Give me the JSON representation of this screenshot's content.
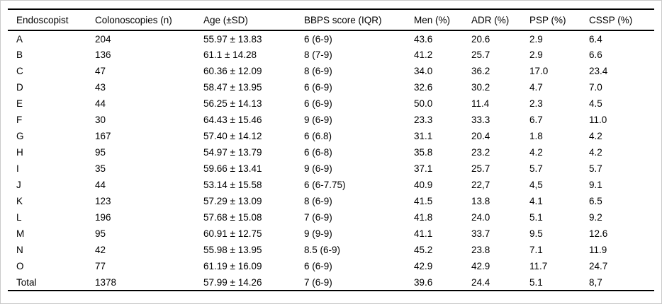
{
  "chart_data": {
    "type": "table",
    "columns": [
      "Endoscopist",
      "Colonoscopies (n)",
      "Age (±SD)",
      "BBPS score (IQR)",
      "Men (%)",
      "ADR (%)",
      "PSP (%)",
      "CSSP (%)"
    ],
    "rows": [
      [
        "A",
        "204",
        "55.97 ± 13.83",
        "6 (6-9)",
        "43.6",
        "20.6",
        "2.9",
        "6.4"
      ],
      [
        "B",
        "136",
        "61.1 ± 14.28",
        "8 (7-9)",
        "41.2",
        "25.7",
        "2.9",
        "6.6"
      ],
      [
        "C",
        "47",
        "60.36 ± 12.09",
        "8 (6-9)",
        "34.0",
        "36.2",
        "17.0",
        "23.4"
      ],
      [
        "D",
        "43",
        "58.47 ± 13.95",
        "6 (6-9)",
        "32.6",
        "30.2",
        "4.7",
        "7.0"
      ],
      [
        "E",
        "44",
        "56.25 ± 14.13",
        "6 (6-9)",
        "50.0",
        "11.4",
        "2.3",
        "4.5"
      ],
      [
        "F",
        "30",
        "64.43 ± 15.46",
        "9 (6-9)",
        "23.3",
        "33.3",
        "6.7",
        "11.0"
      ],
      [
        "G",
        "167",
        "57.40 ± 14.12",
        "6 (6.8)",
        "31.1",
        "20.4",
        "1.8",
        "4.2"
      ],
      [
        "H",
        "95",
        "54.97 ± 13.79",
        "6 (6-8)",
        "35.8",
        "23.2",
        "4.2",
        "4.2"
      ],
      [
        "I",
        "35",
        "59.66 ± 13.41",
        "9 (6-9)",
        "37.1",
        "25.7",
        "5.7",
        "5.7"
      ],
      [
        "J",
        "44",
        "53.14 ± 15.58",
        "6 (6-7.75)",
        "40.9",
        "22,7",
        "4,5",
        "9.1"
      ],
      [
        "K",
        "123",
        "57.29 ± 13.09",
        "8 (6-9)",
        "41.5",
        "13.8",
        "4.1",
        "6.5"
      ],
      [
        "L",
        "196",
        "57.68 ± 15.08",
        "7 (6-9)",
        "41.8",
        "24.0",
        "5.1",
        "9.2"
      ],
      [
        "M",
        "95",
        "60.91 ± 12.75",
        "9 (9-9)",
        "41.1",
        "33.7",
        "9.5",
        "12.6"
      ],
      [
        "N",
        "42",
        "55.98 ± 13.95",
        "8.5 (6-9)",
        "45.2",
        "23.8",
        "7.1",
        "11.9"
      ],
      [
        "O",
        "77",
        "61.19 ± 16.09",
        "6 (6-9)",
        "42.9",
        "42.9",
        "11.7",
        "24.7"
      ],
      [
        "Total",
        "1378",
        "57.99 ± 14.26",
        "7 (6-9)",
        "39.6",
        "24.4",
        "5.1",
        "8,7"
      ]
    ]
  }
}
